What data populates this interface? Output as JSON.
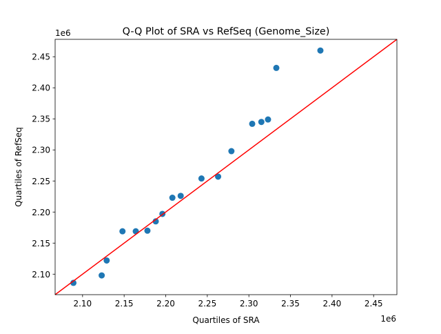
{
  "chart_data": {
    "type": "scatter",
    "title": "Q-Q Plot of SRA vs RefSeq (Genome_Size)",
    "xlabel": "Quartiles of SRA",
    "ylabel": "Quartiles of RefSeq",
    "x_offset_label": "1e6",
    "y_offset_label": "1e6",
    "xlim": [
      2.067,
      2.478
    ],
    "ylim": [
      2.067,
      2.478
    ],
    "xticks": [
      2.1,
      2.15,
      2.2,
      2.25,
      2.3,
      2.35,
      2.4,
      2.45
    ],
    "xtick_labels": [
      "2.10",
      "2.15",
      "2.20",
      "2.25",
      "2.30",
      "2.35",
      "2.40",
      "2.45"
    ],
    "yticks": [
      2.1,
      2.15,
      2.2,
      2.25,
      2.3,
      2.35,
      2.4,
      2.45
    ],
    "ytick_labels": [
      "2.10",
      "2.15",
      "2.20",
      "2.25",
      "2.30",
      "2.35",
      "2.40",
      "2.45"
    ],
    "grid": false,
    "point_color": "#1f77b4",
    "reference_line": {
      "type": "y=x",
      "color": "#ff0000"
    },
    "points": [
      [
        2.089,
        2.086
      ],
      [
        2.123,
        2.098
      ],
      [
        2.129,
        2.122
      ],
      [
        2.148,
        2.169
      ],
      [
        2.164,
        2.169
      ],
      [
        2.178,
        2.17
      ],
      [
        2.188,
        2.185
      ],
      [
        2.196,
        2.197
      ],
      [
        2.208,
        2.223
      ],
      [
        2.218,
        2.226
      ],
      [
        2.243,
        2.254
      ],
      [
        2.263,
        2.257
      ],
      [
        2.279,
        2.298
      ],
      [
        2.304,
        2.342
      ],
      [
        2.315,
        2.345
      ],
      [
        2.323,
        2.349
      ],
      [
        2.333,
        2.432
      ],
      [
        2.386,
        2.46
      ]
    ]
  }
}
